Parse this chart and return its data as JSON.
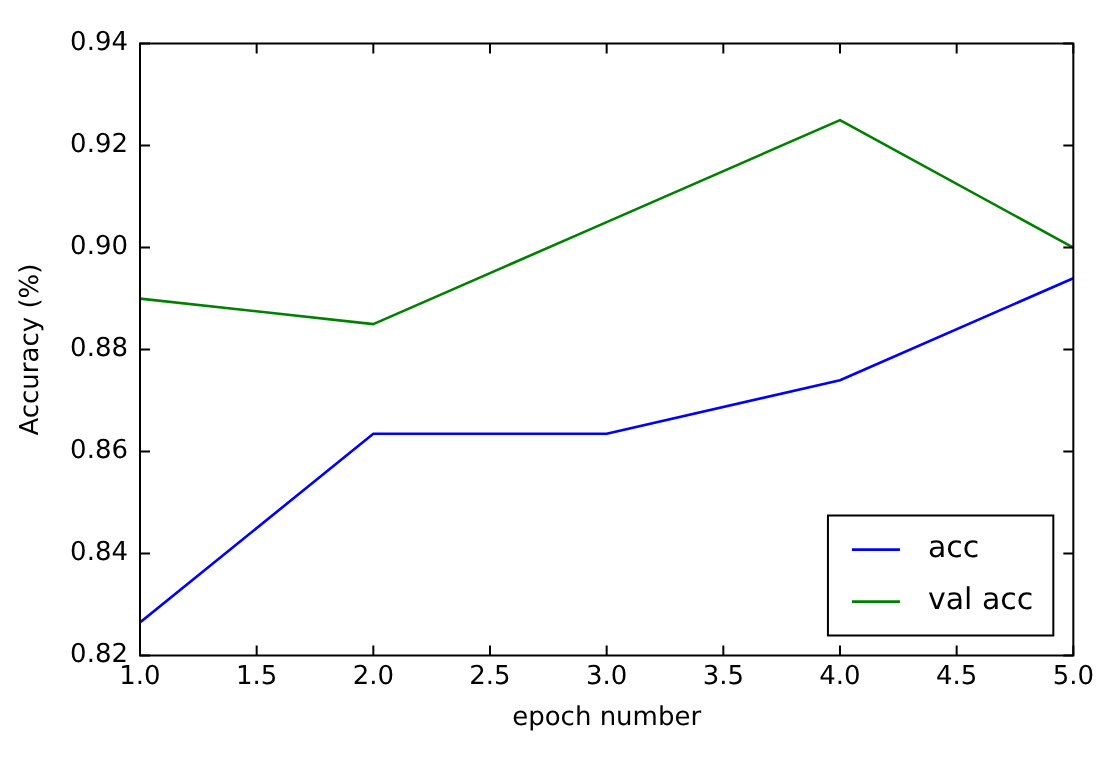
{
  "chart_data": {
    "type": "line",
    "xlabel": "epoch number",
    "ylabel": "Accuracy (%)",
    "x": [
      1,
      2,
      3,
      4,
      5
    ],
    "series": [
      {
        "name": "acc",
        "color": "#0000ff",
        "values": [
          0.8265,
          0.8635,
          0.8635,
          0.874,
          0.894
        ]
      },
      {
        "name": "val acc",
        "color": "#008000",
        "values": [
          0.89,
          0.885,
          0.905,
          0.925,
          0.9
        ]
      }
    ],
    "xlim": [
      1,
      5
    ],
    "xticks": [
      {
        "value": 1,
        "label": "1.0"
      },
      {
        "value": 1.5,
        "label": "1.5"
      },
      {
        "value": 2,
        "label": "2.0"
      },
      {
        "value": 2.5,
        "label": "2.5"
      },
      {
        "value": 3,
        "label": "3.0"
      },
      {
        "value": 3.5,
        "label": "3.5"
      },
      {
        "value": 4,
        "label": "4.0"
      },
      {
        "value": 4.5,
        "label": "4.5"
      },
      {
        "value": 5,
        "label": "5.0"
      }
    ],
    "ylim": [
      0.82,
      0.94
    ],
    "yticks": [
      {
        "value": 0.82,
        "label": "0.82"
      },
      {
        "value": 0.84,
        "label": "0.84"
      },
      {
        "value": 0.86,
        "label": "0.86"
      },
      {
        "value": 0.88,
        "label": "0.88"
      },
      {
        "value": 0.9,
        "label": "0.90"
      },
      {
        "value": 0.92,
        "label": "0.92"
      },
      {
        "value": 0.94,
        "label": "0.94"
      }
    ],
    "legend": "bottom right",
    "grid": false,
    "marker": "none",
    "line_style": "solid"
  }
}
